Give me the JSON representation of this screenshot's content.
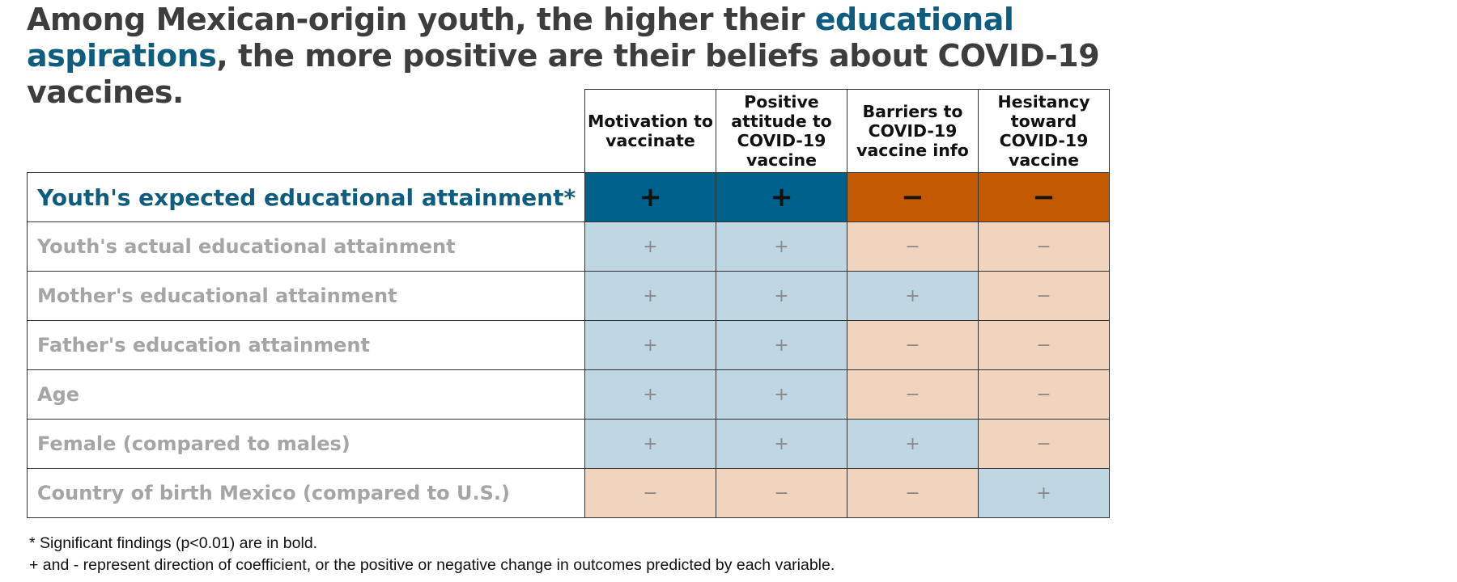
{
  "title": {
    "before": "Among Mexican-origin youth, the higher their ",
    "highlight": "educational aspirations",
    "after": ", the more positive are their beliefs about COVID-19 vaccines."
  },
  "chart_data": {
    "type": "table",
    "columns": [
      "Motivation to vaccinate",
      "Positive attitude to COVID-19 vaccine",
      "Barriers to COVID-19 vaccine info",
      "Hesitancy toward COVID-19 vaccine"
    ],
    "rows": [
      {
        "label": "Youth's expected educational attainment*",
        "significant": true,
        "values": [
          "+",
          "+",
          "−",
          "−"
        ]
      },
      {
        "label": "Youth's actual educational attainment",
        "significant": false,
        "values": [
          "+",
          "+",
          "−",
          "−"
        ]
      },
      {
        "label": "Mother's educational attainment",
        "significant": false,
        "values": [
          "+",
          "+",
          "+",
          "−"
        ]
      },
      {
        "label": "Father's education attainment",
        "significant": false,
        "values": [
          "+",
          "+",
          "−",
          "−"
        ]
      },
      {
        "label": "Age",
        "significant": false,
        "values": [
          "+",
          "+",
          "−",
          "−"
        ]
      },
      {
        "label": "Female (compared to males)",
        "significant": false,
        "values": [
          "+",
          "+",
          "+",
          "−"
        ]
      },
      {
        "label": "Country of birth Mexico (compared to U.S.)",
        "significant": false,
        "values": [
          "−",
          "−",
          "−",
          "+"
        ]
      }
    ],
    "colors": {
      "positive_significant": "#00628b",
      "negative_significant": "#c45a00",
      "positive": "#bfd7e2",
      "negative": "#f0d4be",
      "highlight_text": "#0e5c7e"
    }
  },
  "footnotes": [
    "* Significant findings (p<0.01) are in bold.",
    "+ and - represent direction of coefficient, or the positive or negative change in outcomes predicted by each variable."
  ]
}
